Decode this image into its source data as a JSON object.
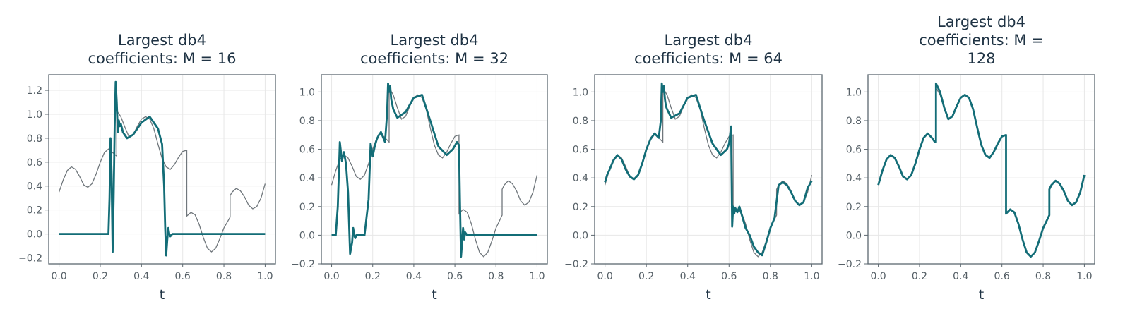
{
  "chart_data": [
    {
      "type": "line",
      "title": "Largest db4 coefficients: M = 16",
      "title_lines": [
        "Largest db4",
        "coefficients: M = 16"
      ],
      "xlabel": "t",
      "xlim": [
        -0.05,
        1.05
      ],
      "ylim": [
        -0.25,
        1.33
      ],
      "xticks": [
        "0.0",
        "0.2",
        "0.4",
        "0.6",
        "0.8",
        "1.0"
      ],
      "yticks": [
        "−0.2",
        "0.0",
        "0.2",
        "0.4",
        "0.6",
        "0.8",
        "1.0",
        "1.2"
      ],
      "ytick_values": [
        -0.2,
        0,
        0.2,
        0.4,
        0.6,
        0.8,
        1.0,
        1.2
      ],
      "series": [
        {
          "x": [
            0,
            0.24,
            0.245,
            0.25,
            0.255,
            0.26,
            0.265,
            0.27,
            0.275,
            0.28,
            0.285,
            0.29,
            0.295,
            0.3,
            0.31,
            0.33,
            0.36,
            0.4,
            0.44,
            0.48,
            0.5,
            0.51,
            0.515,
            0.52,
            0.525,
            0.53,
            0.535,
            0.54,
            0.55,
            0.6,
            0.7,
            0.8,
            1.0
          ],
          "y": [
            0,
            0,
            0.3,
            0.8,
            0.5,
            -0.15,
            0.3,
            0.9,
            1.27,
            1.1,
            0.85,
            0.95,
            0.9,
            0.92,
            0.85,
            0.8,
            0.83,
            0.93,
            0.98,
            0.88,
            0.75,
            0.4,
            0.05,
            -0.18,
            -0.05,
            0.05,
            0.0,
            -0.02,
            0.0,
            0.0,
            0.0,
            0.0,
            0.0
          ]
        }
      ]
    },
    {
      "type": "line",
      "title": "Largest db4 coefficients: M = 32",
      "title_lines": [
        "Largest db4",
        "coefficients: M = 32"
      ],
      "xlabel": "t",
      "xlim": [
        -0.05,
        1.05
      ],
      "ylim": [
        -0.2,
        1.12
      ],
      "xticks": [
        "0.0",
        "0.2",
        "0.4",
        "0.6",
        "0.8",
        "1.0"
      ],
      "yticks": [
        "−0.2",
        "0.0",
        "0.2",
        "0.4",
        "0.6",
        "0.8",
        "1.0"
      ],
      "ytick_values": [
        -0.2,
        0,
        0.2,
        0.4,
        0.6,
        0.8,
        1.0
      ],
      "series": [
        {
          "x": [
            0,
            0.02,
            0.03,
            0.04,
            0.05,
            0.06,
            0.07,
            0.08,
            0.09,
            0.1,
            0.105,
            0.11,
            0.115,
            0.12,
            0.13,
            0.14,
            0.16,
            0.18,
            0.19,
            0.2,
            0.21,
            0.22,
            0.23,
            0.24,
            0.26,
            0.27,
            0.275,
            0.28,
            0.285,
            0.29,
            0.3,
            0.32,
            0.36,
            0.4,
            0.44,
            0.48,
            0.52,
            0.56,
            0.59,
            0.61,
            0.62,
            0.625,
            0.63,
            0.635,
            0.64,
            0.645,
            0.65,
            0.66,
            0.7,
            0.8,
            1.0
          ],
          "y": [
            0,
            0,
            0.2,
            0.65,
            0.52,
            0.58,
            0.5,
            0.3,
            -0.13,
            -0.05,
            0.05,
            0.0,
            -0.02,
            0.0,
            0.0,
            0.0,
            0.0,
            0.25,
            0.64,
            0.55,
            0.62,
            0.67,
            0.7,
            0.72,
            0.65,
            0.85,
            1.06,
            1.0,
            1.04,
            0.95,
            0.88,
            0.82,
            0.86,
            0.96,
            0.98,
            0.8,
            0.62,
            0.56,
            0.6,
            0.65,
            0.63,
            0.2,
            -0.15,
            -0.05,
            0.05,
            -0.03,
            0.02,
            0.0,
            0.0,
            0.0,
            0.0
          ]
        }
      ]
    },
    {
      "type": "line",
      "title": "Largest db4 coefficients: M = 64",
      "title_lines": [
        "Largest db4",
        "coefficients: M = 64"
      ],
      "xlabel": "t",
      "xlim": [
        -0.05,
        1.05
      ],
      "ylim": [
        -0.2,
        1.12
      ],
      "xticks": [
        "0.0",
        "0.2",
        "0.4",
        "0.6",
        "0.8",
        "1.0"
      ],
      "yticks": [
        "−0.2",
        "0.0",
        "0.2",
        "0.4",
        "0.6",
        "0.8",
        "1.0"
      ],
      "ytick_values": [
        -0.2,
        0,
        0.2,
        0.4,
        0.6,
        0.8,
        1.0
      ],
      "series": [
        {
          "x": [
            0,
            0.01,
            0.02,
            0.04,
            0.06,
            0.08,
            0.1,
            0.12,
            0.14,
            0.16,
            0.18,
            0.2,
            0.22,
            0.24,
            0.26,
            0.27,
            0.275,
            0.28,
            0.285,
            0.29,
            0.295,
            0.3,
            0.32,
            0.36,
            0.4,
            0.44,
            0.48,
            0.52,
            0.56,
            0.59,
            0.6,
            0.61,
            0.615,
            0.62,
            0.625,
            0.63,
            0.64,
            0.65,
            0.66,
            0.68,
            0.7,
            0.72,
            0.74,
            0.76,
            0.78,
            0.8,
            0.82,
            0.84,
            0.86,
            0.88,
            0.9,
            0.92,
            0.94,
            0.96,
            0.98,
            1.0
          ],
          "y": [
            0.37,
            0.42,
            0.45,
            0.52,
            0.56,
            0.53,
            0.46,
            0.41,
            0.39,
            0.42,
            0.5,
            0.6,
            0.67,
            0.71,
            0.68,
            0.8,
            1.06,
            1.0,
            1.04,
            0.95,
            0.9,
            0.88,
            0.82,
            0.85,
            0.96,
            0.98,
            0.8,
            0.64,
            0.56,
            0.6,
            0.64,
            0.76,
            0.06,
            0.2,
            0.15,
            0.19,
            0.16,
            0.2,
            0.15,
            0.05,
            0.0,
            -0.08,
            -0.12,
            -0.14,
            -0.05,
            0.05,
            0.12,
            0.35,
            0.37,
            0.35,
            0.3,
            0.24,
            0.21,
            0.23,
            0.33,
            0.38
          ]
        }
      ]
    },
    {
      "type": "line",
      "title": "Largest db4 coefficients: M = 128",
      "title_lines": [
        "Largest db4",
        "coefficients: M =",
        "128"
      ],
      "xlabel": "t",
      "xlim": [
        -0.05,
        1.05
      ],
      "ylim": [
        -0.2,
        1.12
      ],
      "xticks": [
        "0.0",
        "0.2",
        "0.4",
        "0.6",
        "0.8",
        "1.0"
      ],
      "yticks": [
        "−0.2",
        "0.0",
        "0.2",
        "0.4",
        "0.6",
        "0.8",
        "1.0"
      ],
      "ytick_values": [
        -0.2,
        0,
        0.2,
        0.4,
        0.6,
        0.8,
        1.0
      ],
      "series": [
        {
          "x": [
            0,
            0.02,
            0.04,
            0.06,
            0.08,
            0.1,
            0.12,
            0.14,
            0.16,
            0.18,
            0.2,
            0.22,
            0.24,
            0.26,
            0.275,
            0.28,
            0.28,
            0.3,
            0.32,
            0.34,
            0.36,
            0.38,
            0.4,
            0.42,
            0.44,
            0.46,
            0.48,
            0.5,
            0.52,
            0.54,
            0.56,
            0.58,
            0.6,
            0.62,
            0.62,
            0.64,
            0.66,
            0.68,
            0.7,
            0.72,
            0.74,
            0.76,
            0.78,
            0.8,
            0.82,
            0.83,
            0.83,
            0.84,
            0.86,
            0.88,
            0.9,
            0.92,
            0.94,
            0.96,
            0.98,
            1.0
          ],
          "y": [
            0.35,
            0.45,
            0.53,
            0.56,
            0.54,
            0.48,
            0.41,
            0.39,
            0.42,
            0.5,
            0.6,
            0.68,
            0.71,
            0.68,
            0.65,
            0.65,
            1.06,
            1.0,
            0.89,
            0.81,
            0.83,
            0.9,
            0.96,
            0.98,
            0.96,
            0.88,
            0.75,
            0.63,
            0.56,
            0.54,
            0.58,
            0.64,
            0.69,
            0.7,
            0.15,
            0.18,
            0.16,
            0.08,
            -0.03,
            -0.12,
            -0.15,
            -0.12,
            -0.04,
            0.05,
            0.11,
            0.14,
            0.32,
            0.35,
            0.38,
            0.36,
            0.31,
            0.24,
            0.21,
            0.23,
            0.3,
            0.42
          ]
        }
      ]
    }
  ],
  "reference_signal": {
    "x": [
      0,
      0.02,
      0.04,
      0.06,
      0.08,
      0.1,
      0.12,
      0.14,
      0.16,
      0.18,
      0.2,
      0.22,
      0.24,
      0.26,
      0.28,
      0.28,
      0.3,
      0.32,
      0.34,
      0.36,
      0.38,
      0.4,
      0.42,
      0.44,
      0.46,
      0.48,
      0.5,
      0.52,
      0.54,
      0.56,
      0.58,
      0.6,
      0.62,
      0.62,
      0.64,
      0.66,
      0.68,
      0.7,
      0.72,
      0.74,
      0.76,
      0.78,
      0.8,
      0.82,
      0.83,
      0.83,
      0.84,
      0.86,
      0.88,
      0.9,
      0.92,
      0.94,
      0.96,
      0.98,
      1.0
    ],
    "y": [
      0.35,
      0.45,
      0.53,
      0.56,
      0.54,
      0.48,
      0.41,
      0.39,
      0.42,
      0.5,
      0.6,
      0.68,
      0.71,
      0.68,
      0.65,
      1.03,
      0.98,
      0.89,
      0.81,
      0.83,
      0.9,
      0.96,
      0.98,
      0.96,
      0.88,
      0.75,
      0.63,
      0.56,
      0.54,
      0.58,
      0.64,
      0.69,
      0.7,
      0.15,
      0.18,
      0.16,
      0.08,
      -0.03,
      -0.12,
      -0.15,
      -0.12,
      -0.04,
      0.05,
      0.11,
      0.14,
      0.32,
      0.35,
      0.38,
      0.36,
      0.31,
      0.24,
      0.21,
      0.23,
      0.3,
      0.42
    ]
  },
  "colors": {
    "approximation": "#136d77",
    "reference": "#70777c",
    "frame": "#5c6870",
    "grid": "#e7e7e7"
  }
}
